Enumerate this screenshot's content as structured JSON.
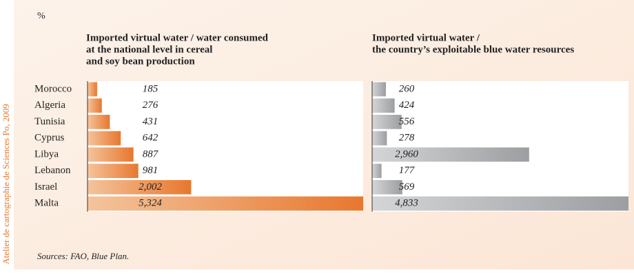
{
  "unit": "%",
  "credit": "Atelier de cartographie de Sciences Po, 2009",
  "source": "Sources: FAO, Blue Plan.",
  "chart_data": [
    {
      "type": "bar",
      "orientation": "horizontal",
      "title": [
        "Imported virtual water / water consumed",
        "at the national level in cereal",
        "and soy bean production"
      ],
      "categories": [
        "Morocco",
        "Algeria",
        "Tunisia",
        "Cyprus",
        "Libya",
        "Lebanon",
        "Israel",
        "Malta"
      ],
      "values": [
        185,
        276,
        431,
        642,
        887,
        981,
        2002,
        5324
      ],
      "value_labels": [
        "185",
        "276",
        "431",
        "642",
        "887",
        "981",
        "2,002",
        "5,324"
      ],
      "color": [
        "#f4c49c",
        "#e8772e"
      ],
      "xlim": [
        0,
        5324
      ]
    },
    {
      "type": "bar",
      "orientation": "horizontal",
      "title": [
        "Imported virtual water /",
        "the country’s exploitable blue water resources"
      ],
      "values": [
        260,
        424,
        556,
        278,
        2960,
        177,
        569,
        4833
      ],
      "value_labels": [
        "260",
        "424",
        "556",
        "278",
        "2,960",
        "177",
        "569",
        "4,833"
      ],
      "color": [
        "#d4d5d7",
        "#9c9ea1"
      ],
      "xlim": [
        0,
        4833
      ]
    }
  ]
}
